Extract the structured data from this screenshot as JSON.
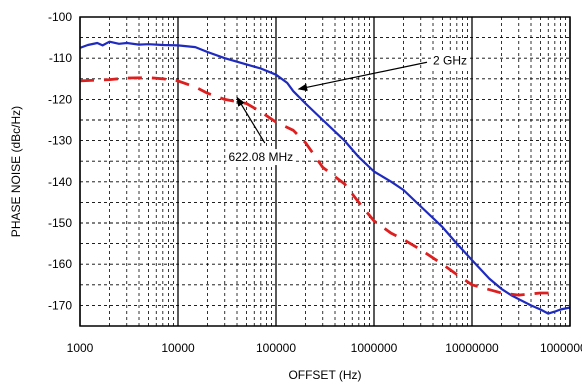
{
  "chart_data": {
    "type": "line",
    "xscale": "log",
    "xlabel": "OFFSET (Hz)",
    "ylabel": "PHASE NOISE (dBc/Hz)",
    "xlim": [
      1000,
      100000000
    ],
    "ylim": [
      -175,
      -100
    ],
    "grid": true,
    "xticks": [
      "1000",
      "10000",
      "100000",
      "1000000",
      "10000000",
      "100000000"
    ],
    "yticks": [
      "-100",
      "-110",
      "-120",
      "-130",
      "-140",
      "-150",
      "-160",
      "-170"
    ],
    "series": [
      {
        "name": "2 GHz",
        "color": "#1f2bbf",
        "style": "solid",
        "x": [
          1000,
          1200,
          1500,
          1700,
          2000,
          2500,
          3000,
          4000,
          5000,
          7000,
          10000,
          15000,
          20000,
          30000,
          50000,
          70000,
          100000,
          130000,
          150000,
          200000,
          300000,
          500000,
          700000,
          1000000,
          1500000,
          2000000,
          3000000,
          5000000,
          7000000,
          10000000,
          15000000,
          20000000,
          25000000,
          30000000,
          40000000,
          50000000,
          60000000,
          70000000,
          80000000,
          100000000
        ],
        "y": [
          -107.5,
          -106.8,
          -106.3,
          -106.9,
          -106,
          -106.5,
          -106.3,
          -106.7,
          -106.6,
          -106.8,
          -106.9,
          -107.3,
          -108.5,
          -110,
          -111.5,
          -112.5,
          -114,
          -116,
          -118,
          -121,
          -125,
          -130,
          -134,
          -137.5,
          -140,
          -142,
          -146,
          -151,
          -155,
          -159,
          -163.5,
          -166,
          -167.5,
          -168.5,
          -170,
          -171,
          -172,
          -171.5,
          -171,
          -170.5
        ]
      },
      {
        "name": "622.08 MHz",
        "color": "#dd1f1f",
        "style": "dashed",
        "x": [
          1000,
          2000,
          3000,
          5000,
          7000,
          10000,
          15000,
          20000,
          30000,
          50000,
          70000,
          100000,
          150000,
          200000,
          300000,
          500000,
          700000,
          1000000,
          1500000,
          2000000,
          3000000,
          5000000,
          7000000,
          10000000,
          20000000,
          30000000,
          50000000,
          70000000
        ],
        "y": [
          -115.5,
          -115.2,
          -114.8,
          -114.7,
          -115,
          -115.5,
          -117,
          -118.5,
          -120,
          -121,
          -123,
          -125.5,
          -127.5,
          -130.5,
          -136.5,
          -140.5,
          -145,
          -149.5,
          -152.5,
          -154,
          -156.5,
          -160,
          -162.5,
          -165,
          -167,
          -167.5,
          -167,
          -167
        ]
      }
    ],
    "annotations": [
      {
        "label": "2 GHz",
        "text_pos": [
          4000000,
          -110.5
        ],
        "arrow_to": [
          170000,
          -117.5
        ]
      },
      {
        "label": "622.08 MHz",
        "text_pos": [
          70000,
          -134
        ],
        "arrow_to": [
          40000,
          -119.5
        ]
      }
    ]
  }
}
